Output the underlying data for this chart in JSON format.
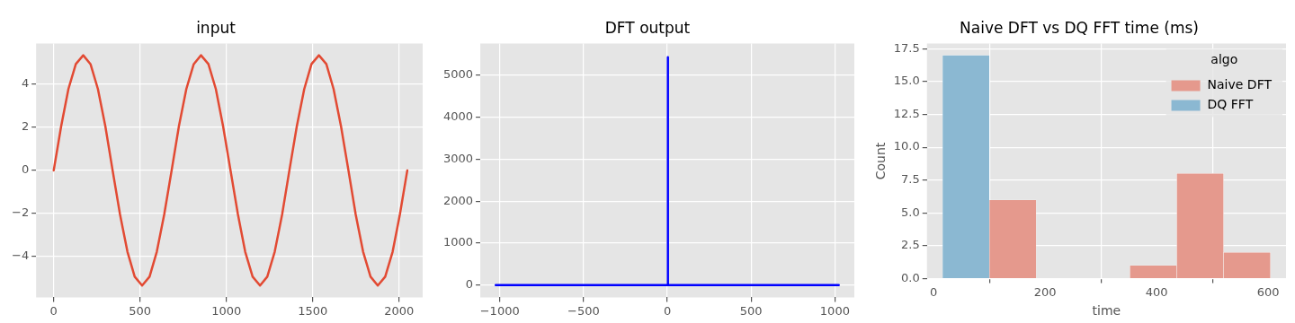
{
  "chart_data": [
    {
      "type": "line",
      "title": "input",
      "grid": true,
      "xlim": [
        -102,
        2137
      ],
      "ylim": [
        -5.9,
        5.9
      ],
      "xticks": [
        0,
        500,
        1000,
        1500,
        2000
      ],
      "yticks": [
        -4,
        -2,
        0,
        2,
        4
      ],
      "series": [
        {
          "color": "#e24a33",
          "x": [
            0,
            43,
            85,
            128,
            171,
            213,
            256,
            299,
            341,
            384,
            427,
            469,
            512,
            555,
            597,
            640,
            683,
            725,
            768,
            811,
            853,
            896,
            939,
            981,
            1024,
            1067,
            1109,
            1152,
            1195,
            1237,
            1280,
            1323,
            1365,
            1408,
            1451,
            1493,
            1536,
            1579,
            1621,
            1664,
            1707,
            1749,
            1792,
            1835,
            1877,
            1920,
            1963,
            2005,
            2048
          ],
          "values": [
            0,
            2.05,
            3.78,
            4.94,
            5.35,
            4.94,
            3.78,
            2.05,
            0,
            -2.05,
            -3.78,
            -4.94,
            -5.35,
            -4.94,
            -3.78,
            -2.05,
            0,
            2.05,
            3.78,
            4.94,
            5.35,
            4.94,
            3.78,
            2.05,
            0,
            -2.05,
            -3.78,
            -4.94,
            -5.35,
            -4.94,
            -3.78,
            -2.05,
            0,
            2.05,
            3.78,
            4.94,
            5.35,
            4.94,
            3.78,
            2.05,
            0,
            -2.05,
            -3.78,
            -4.94,
            -5.35,
            -4.94,
            -3.78,
            -2.05,
            0
          ]
        }
      ]
    },
    {
      "type": "line",
      "title": "DFT output",
      "grid": true,
      "xlim": [
        -1116,
        1116
      ],
      "ylim": [
        -289,
        5756
      ],
      "xticks": [
        -1000,
        -500,
        0,
        500,
        1000
      ],
      "yticks": [
        0,
        1000,
        2000,
        3000,
        4000,
        5000
      ],
      "series": [
        {
          "color": "#0000ff",
          "x": [
            -1024,
            2,
            3,
            4,
            1023
          ],
          "values": [
            0,
            0,
            5430,
            0,
            0
          ]
        }
      ]
    },
    {
      "type": "histogram",
      "title": "Naive DFT vs DQ FFT time (ms)",
      "xlabel": "time",
      "ylabel": "Count",
      "grid": true,
      "legend": "top right",
      "legend_title": "algo",
      "xlim": [
        -12,
        632
      ],
      "ylim": [
        0,
        17.9
      ],
      "xticks": [
        0,
        200,
        400,
        600
      ],
      "yticks": [
        {
          "value": 0,
          "label": "0.0"
        },
        {
          "value": 2.5,
          "label": "2.5"
        },
        {
          "value": 5,
          "label": "5.0"
        },
        {
          "value": 7.5,
          "label": "7.5"
        },
        {
          "value": 10,
          "label": "10.0"
        },
        {
          "value": 12.5,
          "label": "12.5"
        },
        {
          "value": 15,
          "label": "15.0"
        },
        {
          "value": 17.5,
          "label": "17.5"
        }
      ],
      "bins": [
        16,
        100,
        184,
        268,
        352,
        436,
        520,
        604
      ],
      "series": [
        {
          "name": "Naive DFT",
          "color": "#e5998d",
          "values": [
            0,
            6,
            0,
            0,
            1,
            8,
            2
          ]
        },
        {
          "name": "DQ FFT",
          "color": "#8bb8d2",
          "values": [
            17,
            0,
            0,
            0,
            0,
            0,
            0
          ]
        }
      ]
    }
  ]
}
